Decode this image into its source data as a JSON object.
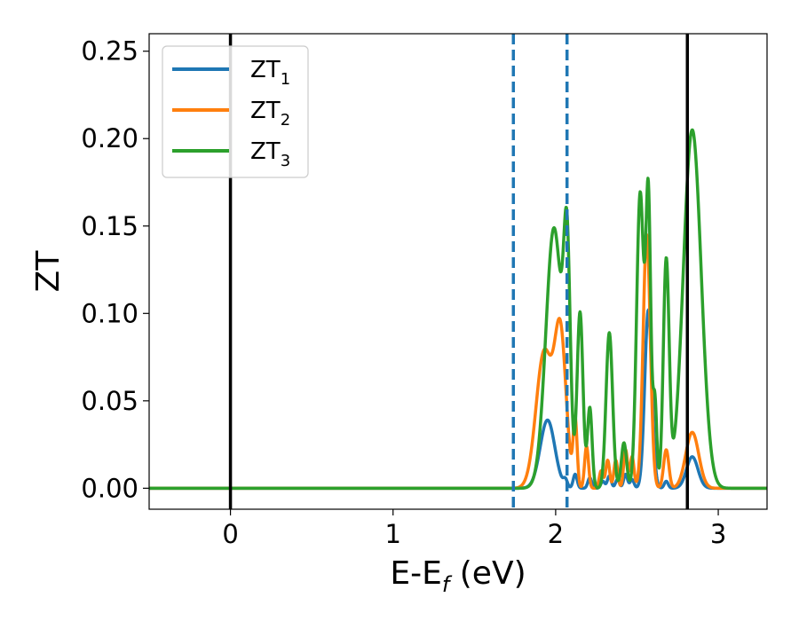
{
  "chart_data": {
    "type": "line",
    "title": "",
    "xlabel_main": "E-E",
    "xlabel_sub": "f",
    "xlabel_unit": " (eV)",
    "ylabel": "ZT",
    "xlim": [
      -0.5,
      3.3
    ],
    "ylim": [
      -0.012,
      0.26
    ],
    "xticks": [
      0,
      1,
      2,
      3
    ],
    "xtick_labels": [
      "0",
      "1",
      "2",
      "3"
    ],
    "yticks": [
      0.0,
      0.05,
      0.1,
      0.15,
      0.2,
      0.25
    ],
    "ytick_labels": [
      "0.00",
      "0.05",
      "0.10",
      "0.15",
      "0.20",
      "0.25"
    ],
    "grid": false,
    "legend_position": "top-left",
    "vlines": [
      {
        "x": 0.0,
        "style": "solid",
        "color": "#000000"
      },
      {
        "x": 1.74,
        "style": "dashed",
        "color": "#1f77b4"
      },
      {
        "x": 2.07,
        "style": "dashed",
        "color": "#1f77b4"
      },
      {
        "x": 2.81,
        "style": "solid",
        "color": "#000000"
      }
    ],
    "series": [
      {
        "name": "ZT",
        "sub": "1",
        "color": "#1f77b4",
        "peaks": [
          {
            "x": 1.95,
            "h": 0.039,
            "w": 0.045
          },
          {
            "x": 2.06,
            "h": 0.004,
            "w": 0.012
          },
          {
            "x": 2.12,
            "h": 0.008,
            "w": 0.012
          },
          {
            "x": 2.21,
            "h": 0.006,
            "w": 0.012
          },
          {
            "x": 2.29,
            "h": 0.004,
            "w": 0.012
          },
          {
            "x": 2.33,
            "h": 0.007,
            "w": 0.012
          },
          {
            "x": 2.38,
            "h": 0.005,
            "w": 0.012
          },
          {
            "x": 2.43,
            "h": 0.008,
            "w": 0.012
          },
          {
            "x": 2.47,
            "h": 0.005,
            "w": 0.012
          },
          {
            "x": 2.57,
            "h": 0.102,
            "w": 0.022
          },
          {
            "x": 2.68,
            "h": 0.004,
            "w": 0.012
          },
          {
            "x": 2.84,
            "h": 0.018,
            "w": 0.035
          }
        ]
      },
      {
        "name": "ZT",
        "sub": "2",
        "color": "#ff7f0e",
        "peaks": [
          {
            "x": 1.93,
            "h": 0.078,
            "w": 0.05
          },
          {
            "x": 2.03,
            "h": 0.085,
            "w": 0.035
          },
          {
            "x": 2.12,
            "h": 0.038,
            "w": 0.012
          },
          {
            "x": 2.19,
            "h": 0.024,
            "w": 0.012
          },
          {
            "x": 2.28,
            "h": 0.01,
            "w": 0.012
          },
          {
            "x": 2.32,
            "h": 0.016,
            "w": 0.012
          },
          {
            "x": 2.37,
            "h": 0.016,
            "w": 0.012
          },
          {
            "x": 2.43,
            "h": 0.022,
            "w": 0.012
          },
          {
            "x": 2.47,
            "h": 0.018,
            "w": 0.012
          },
          {
            "x": 2.56,
            "h": 0.145,
            "w": 0.022
          },
          {
            "x": 2.68,
            "h": 0.022,
            "w": 0.016
          },
          {
            "x": 2.84,
            "h": 0.032,
            "w": 0.04
          }
        ]
      },
      {
        "name": "ZT",
        "sub": "3",
        "color": "#2ca02c",
        "peaks": [
          {
            "x": 1.99,
            "h": 0.149,
            "w": 0.05
          },
          {
            "x": 2.07,
            "h": 0.116,
            "w": 0.02
          },
          {
            "x": 2.15,
            "h": 0.1,
            "w": 0.018
          },
          {
            "x": 2.21,
            "h": 0.046,
            "w": 0.014
          },
          {
            "x": 2.33,
            "h": 0.089,
            "w": 0.02
          },
          {
            "x": 2.42,
            "h": 0.026,
            "w": 0.016
          },
          {
            "x": 2.52,
            "h": 0.169,
            "w": 0.022
          },
          {
            "x": 2.57,
            "h": 0.163,
            "w": 0.015
          },
          {
            "x": 2.61,
            "h": 0.05,
            "w": 0.012
          },
          {
            "x": 2.68,
            "h": 0.129,
            "w": 0.018
          },
          {
            "x": 2.84,
            "h": 0.205,
            "w": 0.055
          }
        ]
      }
    ]
  }
}
